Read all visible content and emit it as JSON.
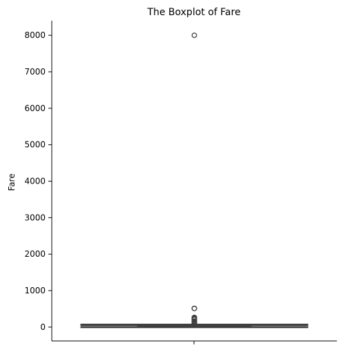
{
  "chart_data": {
    "type": "boxplot",
    "title": "The Boxplot of Fare",
    "xlabel": "",
    "ylabel": "Fare",
    "ylim": [
      -380,
      8400
    ],
    "yticks": [
      0,
      1000,
      2000,
      3000,
      4000,
      5000,
      6000,
      7000,
      8000
    ],
    "grid": false,
    "box": {
      "whisker_low": 0,
      "q1": 7.9,
      "median": 14.45,
      "q3": 31.0,
      "whisker_high": 65.6
    },
    "outliers": [
      8000,
      512.3,
      512.3,
      263,
      263,
      263,
      262.4,
      247.5,
      227.5,
      221.8,
      211.5,
      211.3,
      164.9,
      153.5,
      151.6,
      146.5,
      135.6,
      133.7,
      120,
      113.3,
      110.9,
      108.9,
      106.4,
      93.5,
      90,
      89.1,
      83.2,
      80,
      78.8,
      77.3,
      73.5,
      69.6
    ]
  }
}
